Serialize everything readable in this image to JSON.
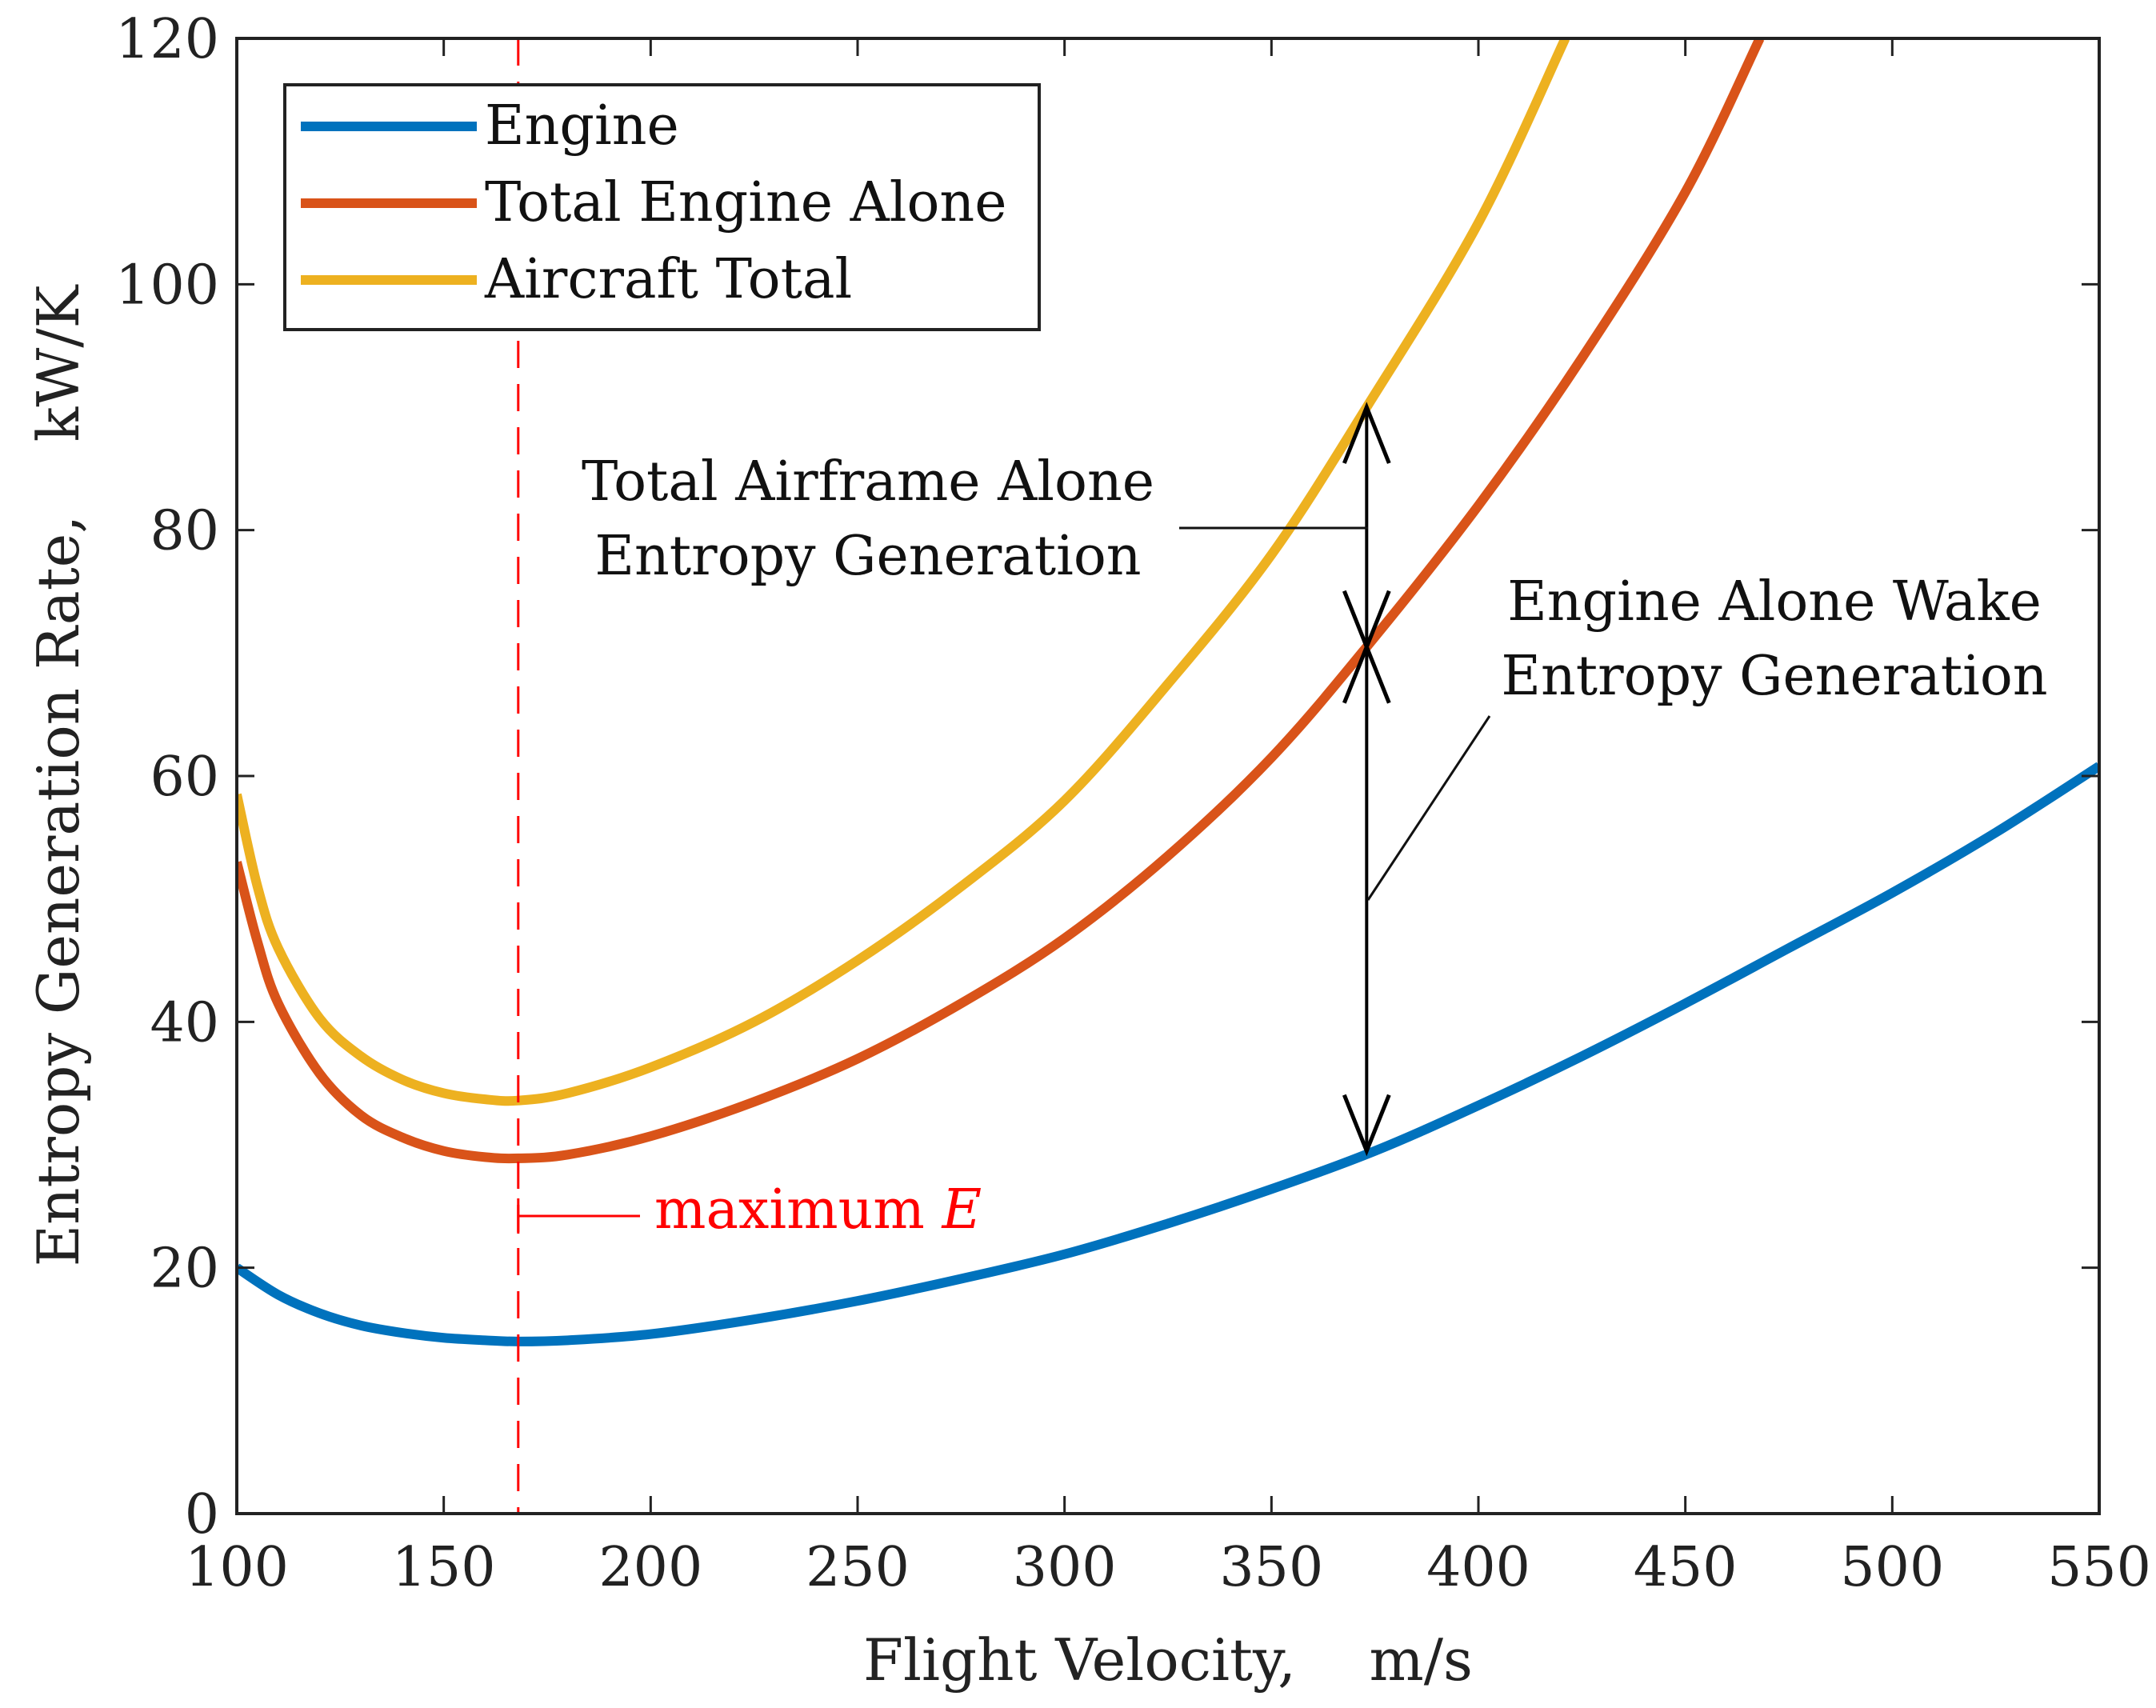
{
  "chart_data": {
    "type": "line",
    "xlabel": "Flight Velocity,    m/s",
    "ylabel": "Entropy Generation Rate,    kW/K",
    "xlim": [
      100,
      550
    ],
    "ylim": [
      0,
      120
    ],
    "xticks": [
      100,
      150,
      200,
      250,
      300,
      350,
      400,
      450,
      500,
      550
    ],
    "yticks": [
      0,
      20,
      40,
      60,
      80,
      100,
      120
    ],
    "grid": false,
    "legend_position": "top-left",
    "series": [
      {
        "name": "Engine",
        "color": "#0072BD",
        "x": [
          100,
          110,
          120,
          130,
          140,
          150,
          160,
          168,
          180,
          200,
          225,
          250,
          275,
          300,
          325,
          350,
          375,
          400,
          425,
          450,
          475,
          500,
          525,
          550
        ],
        "y": [
          20.0,
          17.8,
          16.3,
          15.3,
          14.7,
          14.3,
          14.1,
          14.0,
          14.1,
          14.6,
          15.8,
          17.3,
          19.1,
          21.1,
          23.6,
          26.4,
          29.5,
          33.2,
          37.2,
          41.5,
          46.0,
          50.5,
          55.4,
          60.8
        ]
      },
      {
        "name": "Total Engine Alone",
        "color": "#D95319",
        "x": [
          100,
          105,
          110,
          120,
          130,
          140,
          150,
          160,
          168,
          180,
          200,
          225,
          250,
          275,
          300,
          325,
          350,
          373,
          400,
          425,
          450,
          468
        ],
        "y": [
          53.0,
          46.5,
          41.5,
          35.8,
          32.4,
          30.6,
          29.5,
          29.0,
          28.9,
          29.2,
          30.7,
          33.5,
          37.0,
          41.5,
          46.8,
          53.5,
          61.5,
          70.5,
          82.0,
          94.0,
          107.5,
          120.0
        ]
      },
      {
        "name": "Aircraft Total",
        "color": "#EDB120",
        "x": [
          100,
          105,
          110,
          120,
          130,
          140,
          150,
          160,
          168,
          180,
          200,
          225,
          250,
          275,
          300,
          325,
          350,
          373,
          400,
          421
        ],
        "y": [
          58.5,
          51.0,
          46.0,
          40.3,
          37.2,
          35.3,
          34.2,
          33.7,
          33.6,
          34.2,
          36.3,
          40.0,
          45.0,
          51.0,
          58.0,
          67.5,
          78.0,
          90.0,
          105.0,
          120.0
        ]
      }
    ],
    "vline": {
      "x": 168,
      "color": "#FF0000",
      "label_text": "maximum ",
      "label_italic": "E"
    },
    "annotations": [
      {
        "lines": [
          "Total Airframe Alone",
          "Entropy Generation"
        ]
      },
      {
        "lines": [
          "Engine Alone Wake",
          "Entropy Generation"
        ]
      }
    ],
    "arrow_x": 373,
    "arrow_points": {
      "aircraft_total": 90.0,
      "total_engine_alone": 70.5,
      "engine": 29.5
    }
  }
}
